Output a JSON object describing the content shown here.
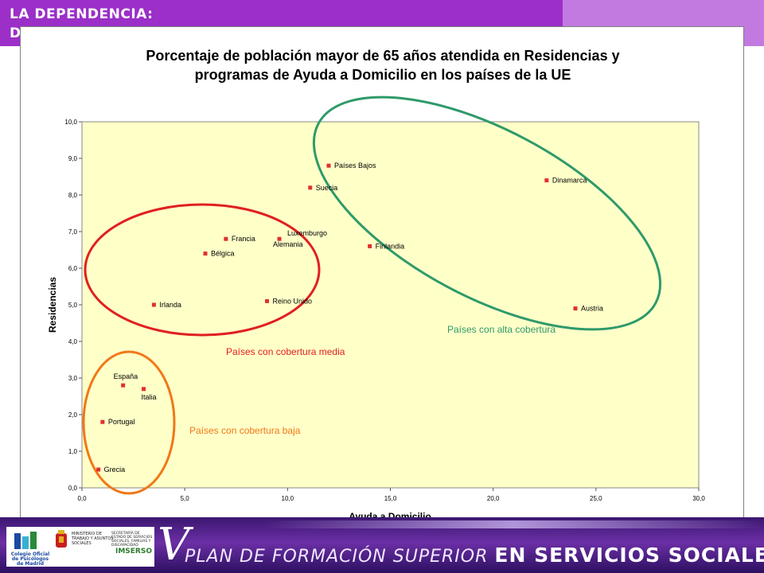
{
  "header": {
    "title": "LA DEPENDENCIA:",
    "subtitle_visible": "D"
  },
  "footer": {
    "roman_numeral": "V",
    "plan_text": "PLAN DE FORMACIÓN SUPERIOR",
    "plan_bold": "EN SERVICIOS SOCIALES",
    "logos": {
      "psicologos": "Colegio Oficial de Psicólogos de Madrid",
      "ministerio": "MINISTERIO DE TRABAJO Y ASUNTOS SOCIALES",
      "imserso_head": "SECRETARÍA DE ESTADO DE SERVICIOS SOCIALES, FAMILIAS Y DISCAPACIDAD",
      "imserso": "IMSERSO"
    }
  },
  "chart_data": {
    "type": "scatter",
    "title_line1": "Porcentaje de población mayor de 65 años atendida en Residencias y",
    "title_line2": "programas de Ayuda a Domicilio en los países de la UE",
    "xlabel": "Ayuda a Domicilio",
    "ylabel": "Residencias",
    "xlim": [
      0,
      30
    ],
    "ylim": [
      0,
      10
    ],
    "x_ticks": [
      "0,0",
      "5,0",
      "10,0",
      "15,0",
      "20,0",
      "25,0",
      "30,0"
    ],
    "y_ticks": [
      "0,0",
      "1,0",
      "2,0",
      "3,0",
      "4,0",
      "5,0",
      "6,0",
      "7,0",
      "8,0",
      "9,0",
      "10,0"
    ],
    "grid": false,
    "plot_background": "#ffffc8",
    "marker_color": "#e03030",
    "points": [
      {
        "label": "Países Bajos",
        "x": 12.0,
        "y": 8.8
      },
      {
        "label": "Suecia",
        "x": 11.1,
        "y": 8.2
      },
      {
        "label": "Dinamarca",
        "x": 22.6,
        "y": 8.4
      },
      {
        "label": "Francia",
        "x": 7.0,
        "y": 6.8
      },
      {
        "label": "Luxemburgo",
        "x": 9.6,
        "y": 6.8
      },
      {
        "label": "Alemania",
        "x": 9.6,
        "y": 6.8
      },
      {
        "label": "Bélgica",
        "x": 6.0,
        "y": 6.4
      },
      {
        "label": "Finlandia",
        "x": 14.0,
        "y": 6.6
      },
      {
        "label": "Irlanda",
        "x": 3.5,
        "y": 5.0
      },
      {
        "label": "Reino Unido",
        "x": 9.0,
        "y": 5.1
      },
      {
        "label": "Austria",
        "x": 24.0,
        "y": 4.9
      },
      {
        "label": "España",
        "x": 2.0,
        "y": 2.8
      },
      {
        "label": "Italia",
        "x": 3.0,
        "y": 2.7
      },
      {
        "label": "Portugal",
        "x": 1.0,
        "y": 1.8
      },
      {
        "label": "Grecia",
        "x": 0.8,
        "y": 0.5
      }
    ],
    "groups": [
      {
        "label": "Países con alta cobertura",
        "color": "#2e9a6a"
      },
      {
        "label": "Países con cobertura media",
        "color": "#e02020"
      },
      {
        "label": "Países con cobertura baja",
        "color": "#f07818"
      }
    ]
  }
}
